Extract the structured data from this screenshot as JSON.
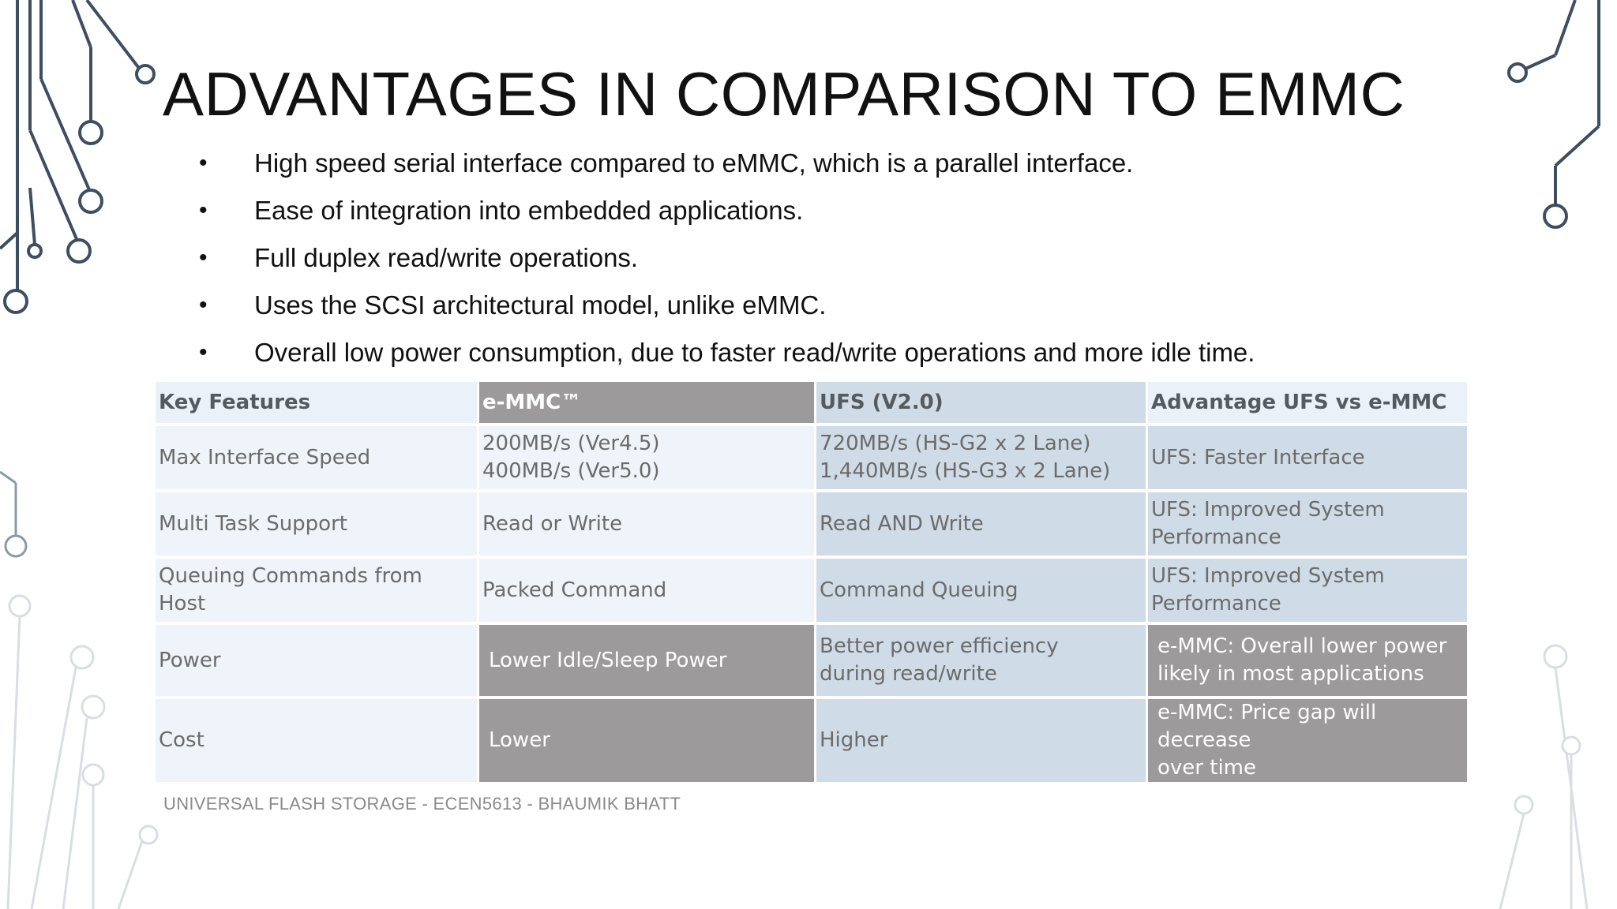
{
  "slide": {
    "title": "ADVANTAGES IN COMPARISON TO EMMC",
    "bullets": [
      "High speed serial interface compared to eMMC, which is a parallel interface.",
      "Ease of integration into embedded applications.",
      "Full duplex read/write operations.",
      "Uses the SCSI architectural model, unlike eMMC.",
      "Overall low power consumption, due to faster read/write operations and more idle time."
    ],
    "bullet_glyph": "•",
    "footer": "UNIVERSAL FLASH STORAGE - ECEN5613 - BHAUMIK BHATT"
  },
  "table": {
    "headers": [
      "Key Features",
      "e-MMC™",
      "UFS (V2.0)",
      "Advantage UFS vs e-MMC"
    ],
    "rows": [
      {
        "feature": "Max Interface Speed",
        "emmc": [
          "200MB/s (Ver4.5)",
          "400MB/s (Ver5.0)"
        ],
        "ufs": [
          "720MB/s (HS-G2 x 2 Lane)",
          "1,440MB/s (HS-G3 x 2 Lane)"
        ],
        "advantage": [
          "UFS: Faster Interface"
        ]
      },
      {
        "feature": "Multi Task Support",
        "emmc": [
          "Read or Write"
        ],
        "ufs": [
          "Read AND Write"
        ],
        "advantage": [
          "UFS: Improved System",
          "Performance"
        ]
      },
      {
        "feature": "Queuing Commands from Host",
        "emmc": [
          "Packed Command"
        ],
        "ufs": [
          "Command Queuing"
        ],
        "advantage": [
          "UFS: Improved System",
          "Performance"
        ]
      },
      {
        "feature": "Power",
        "emmc": [
          "Lower Idle/Sleep Power"
        ],
        "ufs": [
          "Better power efficiency",
          "during read/write"
        ],
        "advantage": [
          "e-MMC: Overall lower power",
          "likely in most applications"
        ]
      },
      {
        "feature": "Cost",
        "emmc": [
          "Lower"
        ],
        "ufs": [
          "Higher"
        ],
        "advantage": [
          "e-MMC: Price gap will decrease",
          "over time"
        ]
      }
    ]
  },
  "colors": {
    "highlight_cell": "#9c9a9b",
    "light_cell": "#eef4fa",
    "mid_cell": "#cfdbe6",
    "decor_line": "#3d4e60"
  }
}
